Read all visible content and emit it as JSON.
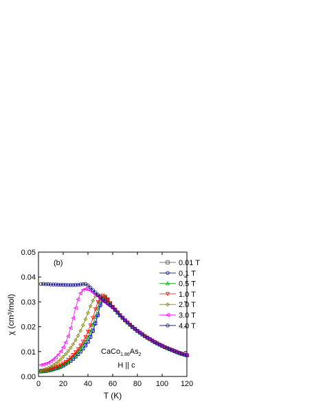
{
  "chart_data": {
    "type": "line",
    "panel_label": "(b)",
    "formula": [
      "CaCo",
      "1.86",
      "As",
      "2"
    ],
    "annotation": "H || c",
    "x_label": "T (K)",
    "y_label": "χ (cm³/mol)",
    "xlim": [
      0,
      120
    ],
    "ylim": [
      0,
      0.05
    ],
    "xticks": [
      0,
      20,
      40,
      60,
      80,
      100,
      120
    ],
    "yticks": [
      {
        "value": 0,
        "label": "0.00"
      },
      {
        "value": 0.01,
        "label": "0.01"
      },
      {
        "value": 0.02,
        "label": "0.02"
      },
      {
        "value": 0.03,
        "label": "0.03"
      },
      {
        "value": 0.04,
        "label": "0.04"
      },
      {
        "value": 0.05,
        "label": "0.05"
      }
    ],
    "legend": "upper right",
    "x": [
      2,
      4,
      6,
      8,
      10,
      12,
      14,
      16,
      18,
      20,
      22,
      24,
      26,
      28,
      30,
      32,
      34,
      36,
      38,
      40,
      42,
      44,
      46,
      48,
      50,
      52,
      54,
      56,
      58,
      60,
      62,
      64,
      66,
      68,
      70,
      72,
      74,
      76,
      78,
      80,
      82,
      84,
      86,
      88,
      90,
      92,
      94,
      96,
      98,
      100,
      102,
      104,
      106,
      108,
      110,
      112,
      114,
      116,
      118,
      120
    ],
    "series": [
      {
        "name": "0.01 T",
        "color": "#404040",
        "marker": "square",
        "values": [
          0.002,
          0.0021,
          0.0022,
          0.0024,
          0.0026,
          0.0029,
          0.0032,
          0.0035,
          0.0039,
          0.0044,
          0.005,
          0.0056,
          0.0063,
          0.0071,
          0.008,
          0.009,
          0.01,
          0.0112,
          0.0125,
          0.014,
          0.016,
          0.0185,
          0.0215,
          0.025,
          0.029,
          0.0312,
          0.032,
          0.031,
          0.0295,
          0.028,
          0.0268,
          0.0257,
          0.0246,
          0.0236,
          0.0226,
          0.0217,
          0.0208,
          0.0199,
          0.0191,
          0.0183,
          0.0176,
          0.0169,
          0.0162,
          0.0156,
          0.015,
          0.0144,
          0.0138,
          0.0133,
          0.0128,
          0.0123,
          0.0118,
          0.0114,
          0.011,
          0.0106,
          0.0102,
          0.0098,
          0.0094,
          0.0091,
          0.0088,
          0.0085
        ]
      },
      {
        "name": "0.1 T",
        "color": "#0000ff",
        "marker": "circle",
        "values": [
          0.002,
          0.0021,
          0.0022,
          0.0024,
          0.0026,
          0.0029,
          0.0032,
          0.0035,
          0.0039,
          0.0044,
          0.005,
          0.0056,
          0.0063,
          0.0071,
          0.008,
          0.009,
          0.01,
          0.0112,
          0.0125,
          0.014,
          0.0158,
          0.0182,
          0.0212,
          0.0245,
          0.0285,
          0.0305,
          0.0312,
          0.0305,
          0.0292,
          0.0279,
          0.0268,
          0.0257,
          0.0246,
          0.0236,
          0.0226,
          0.0217,
          0.0208,
          0.0199,
          0.0191,
          0.0183,
          0.0176,
          0.0169,
          0.0162,
          0.0156,
          0.015,
          0.0144,
          0.0138,
          0.0133,
          0.0128,
          0.0123,
          0.0118,
          0.0114,
          0.011,
          0.0106,
          0.0102,
          0.0098,
          0.0094,
          0.0091,
          0.0088,
          0.0085
        ]
      },
      {
        "name": "0.5 T",
        "color": "#00a000",
        "marker": "triangle-up",
        "values": [
          0.0021,
          0.0022,
          0.0023,
          0.0025,
          0.0028,
          0.0031,
          0.0034,
          0.0038,
          0.0042,
          0.0048,
          0.0054,
          0.0061,
          0.0069,
          0.0078,
          0.0088,
          0.0099,
          0.0111,
          0.0125,
          0.014,
          0.0158,
          0.018,
          0.0208,
          0.024,
          0.0275,
          0.0305,
          0.032,
          0.0322,
          0.031,
          0.0295,
          0.028,
          0.0268,
          0.0257,
          0.0246,
          0.0236,
          0.0226,
          0.0217,
          0.0208,
          0.0199,
          0.0191,
          0.0183,
          0.0176,
          0.0169,
          0.0162,
          0.0156,
          0.015,
          0.0144,
          0.0138,
          0.0133,
          0.0128,
          0.0123,
          0.0118,
          0.0114,
          0.011,
          0.0106,
          0.0102,
          0.0098,
          0.0094,
          0.0091,
          0.0088,
          0.0085
        ]
      },
      {
        "name": "1.0 T",
        "color": "#ff0000",
        "marker": "triangle-down",
        "values": [
          0.0022,
          0.0023,
          0.0025,
          0.0027,
          0.003,
          0.0033,
          0.0037,
          0.0041,
          0.0046,
          0.0052,
          0.0059,
          0.0067,
          0.0076,
          0.0086,
          0.0097,
          0.011,
          0.0124,
          0.014,
          0.0158,
          0.018,
          0.0205,
          0.0235,
          0.027,
          0.03,
          0.0318,
          0.0325,
          0.032,
          0.0308,
          0.0294,
          0.028,
          0.0268,
          0.0257,
          0.0246,
          0.0236,
          0.0226,
          0.0217,
          0.0208,
          0.0199,
          0.0191,
          0.0183,
          0.0176,
          0.0169,
          0.0162,
          0.0156,
          0.015,
          0.0144,
          0.0138,
          0.0133,
          0.0128,
          0.0123,
          0.0118,
          0.0114,
          0.011,
          0.0106,
          0.0102,
          0.0098,
          0.0094,
          0.0091,
          0.0088,
          0.0085
        ]
      },
      {
        "name": "2.0 T",
        "color": "#808000",
        "marker": "diamond",
        "values": [
          0.0025,
          0.0027,
          0.003,
          0.0034,
          0.0039,
          0.0045,
          0.0052,
          0.006,
          0.0069,
          0.0079,
          0.009,
          0.0102,
          0.0115,
          0.013,
          0.0146,
          0.0164,
          0.0184,
          0.0206,
          0.023,
          0.0256,
          0.0282,
          0.0305,
          0.0322,
          0.033,
          0.0325,
          0.0315,
          0.0305,
          0.0295,
          0.0287,
          0.0278,
          0.0268,
          0.0257,
          0.0246,
          0.0236,
          0.0226,
          0.0217,
          0.0208,
          0.0199,
          0.0191,
          0.0183,
          0.0176,
          0.0169,
          0.0162,
          0.0156,
          0.015,
          0.0144,
          0.0138,
          0.0133,
          0.0128,
          0.0123,
          0.0118,
          0.0114,
          0.011,
          0.0106,
          0.0102,
          0.0098,
          0.0094,
          0.0091,
          0.0088,
          0.0085
        ]
      },
      {
        "name": "3.0 T",
        "color": "#ff00ff",
        "marker": "triangle-left",
        "values": [
          0.0046,
          0.0048,
          0.0051,
          0.0055,
          0.0061,
          0.0068,
          0.0077,
          0.0088,
          0.0101,
          0.0117,
          0.0137,
          0.0162,
          0.0195,
          0.0235,
          0.0275,
          0.031,
          0.0335,
          0.0348,
          0.0352,
          0.035,
          0.0345,
          0.0338,
          0.033,
          0.0322,
          0.0313,
          0.0305,
          0.0297,
          0.0289,
          0.0282,
          0.0275,
          0.0268,
          0.0257,
          0.0246,
          0.0236,
          0.0226,
          0.0217,
          0.0208,
          0.0199,
          0.0191,
          0.0183,
          0.0176,
          0.0169,
          0.0162,
          0.0156,
          0.015,
          0.0144,
          0.0138,
          0.0133,
          0.0128,
          0.0123,
          0.0118,
          0.0114,
          0.011,
          0.0106,
          0.0102,
          0.0098,
          0.0094,
          0.0091,
          0.0088,
          0.0085
        ]
      },
      {
        "name": "4.0 T",
        "color": "#000080",
        "marker": "circle",
        "values": [
          0.0372,
          0.0372,
          0.0371,
          0.0371,
          0.037,
          0.037,
          0.037,
          0.0369,
          0.0369,
          0.0369,
          0.0368,
          0.0368,
          0.0368,
          0.0368,
          0.0368,
          0.0369,
          0.037,
          0.0371,
          0.0372,
          0.0366,
          0.0358,
          0.0348,
          0.0338,
          0.0328,
          0.0318,
          0.031,
          0.0302,
          0.0294,
          0.0286,
          0.0278,
          0.0268,
          0.0257,
          0.0246,
          0.0236,
          0.0226,
          0.0217,
          0.0208,
          0.0199,
          0.0191,
          0.0183,
          0.0176,
          0.0169,
          0.0162,
          0.0156,
          0.015,
          0.0144,
          0.0138,
          0.0133,
          0.0128,
          0.0123,
          0.0118,
          0.0114,
          0.011,
          0.0106,
          0.0102,
          0.0098,
          0.0094,
          0.0091,
          0.0088,
          0.0085
        ]
      }
    ]
  }
}
